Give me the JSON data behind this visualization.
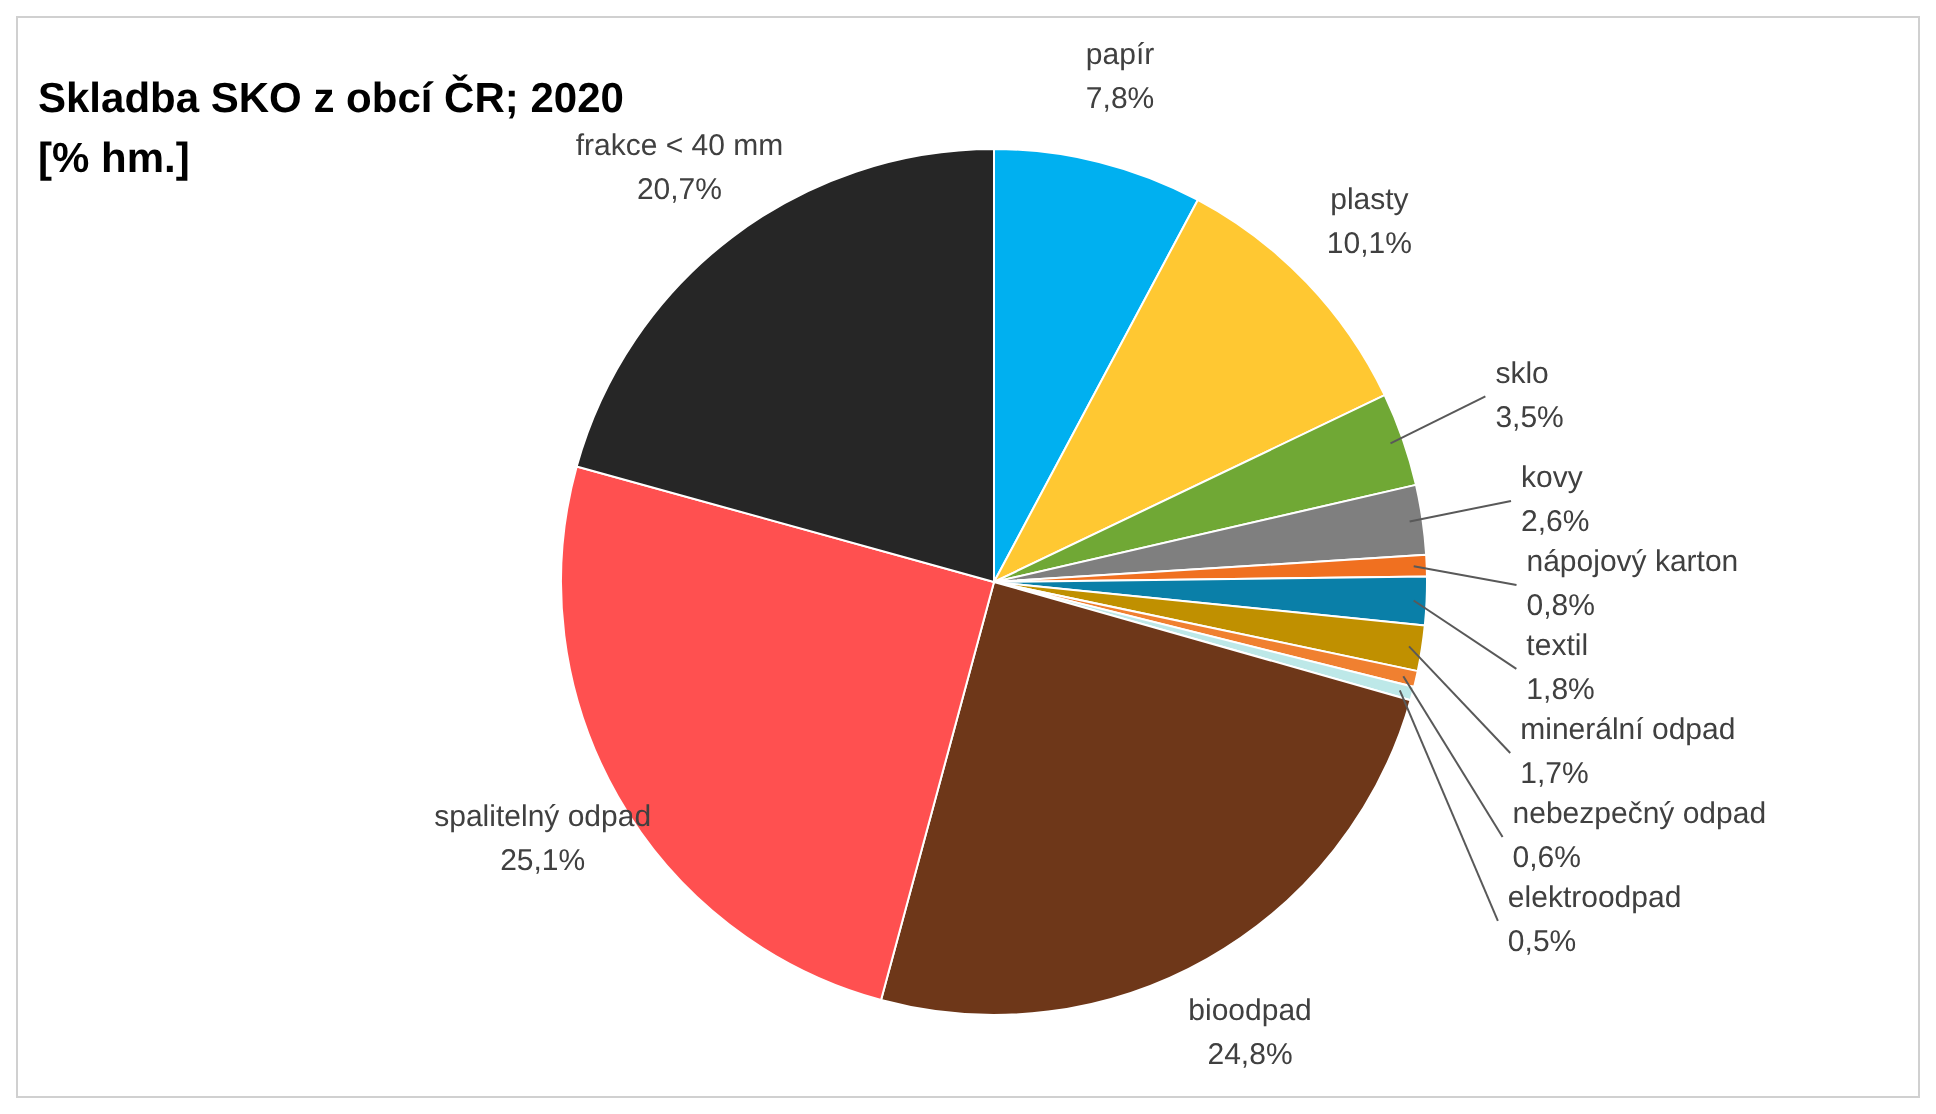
{
  "chart_data": {
    "type": "pie",
    "title": "Skladba SKO z obcí ČR; 2020",
    "subtitle": "[% hm.]",
    "categories": [
      "papír",
      "plasty",
      "sklo",
      "kovy",
      "nápojový karton",
      "textil",
      "minerální odpad",
      "nebezpečný odpad",
      "elektroodpad",
      "bioodpad",
      "spalitelný odpad",
      "frakce < 40 mm"
    ],
    "values": [
      7.8,
      10.1,
      3.5,
      2.6,
      0.8,
      1.8,
      1.7,
      0.6,
      0.5,
      24.8,
      25.1,
      20.7
    ],
    "value_labels": [
      "7,8%",
      "10,1%",
      "3,5%",
      "2,6%",
      "0,8%",
      "1,8%",
      "1,7%",
      "0,6%",
      "0,5%",
      "24,8%",
      "25,1%",
      "20,7%"
    ],
    "colors": [
      "#00b0f0",
      "#ffc832",
      "#70a835",
      "#7f7f7f",
      "#f07020",
      "#0a7fa8",
      "#c09000",
      "#f08030",
      "#bde8e8",
      "#6e3719",
      "#ff5050",
      "#262626"
    ],
    "legend": false
  }
}
